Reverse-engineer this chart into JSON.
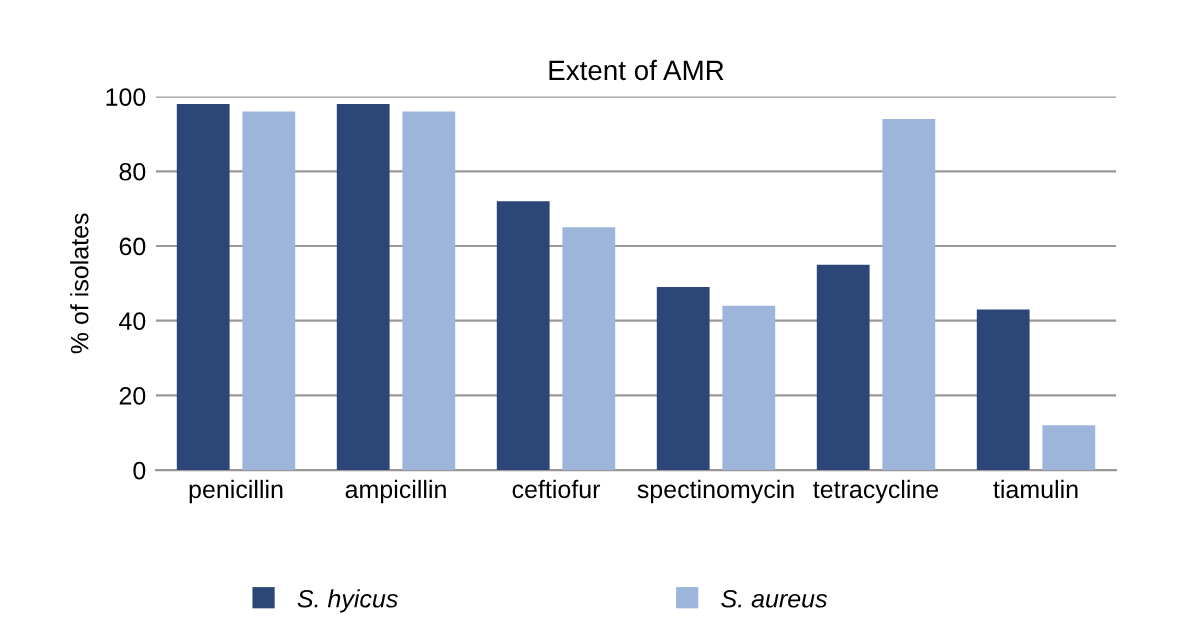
{
  "chart_data": {
    "type": "bar",
    "title": "Extent of AMR",
    "ylabel": "% of isolates",
    "categories": [
      "penicillin",
      "ampicillin",
      "ceftiofur",
      "spectinomycin",
      "tetracycline",
      "tiamulin"
    ],
    "series": [
      {
        "name": "S. hyicus",
        "color": "#2c4677",
        "values": [
          98,
          98,
          72,
          49,
          55,
          43
        ]
      },
      {
        "name": "S. aureus",
        "color": "#9db5db",
        "values": [
          96,
          96,
          65,
          44,
          94,
          12
        ]
      }
    ],
    "ylim": [
      0,
      100
    ],
    "yticks": [
      0,
      20,
      40,
      60,
      80,
      100
    ],
    "grid": "y",
    "legend": "bottom"
  }
}
